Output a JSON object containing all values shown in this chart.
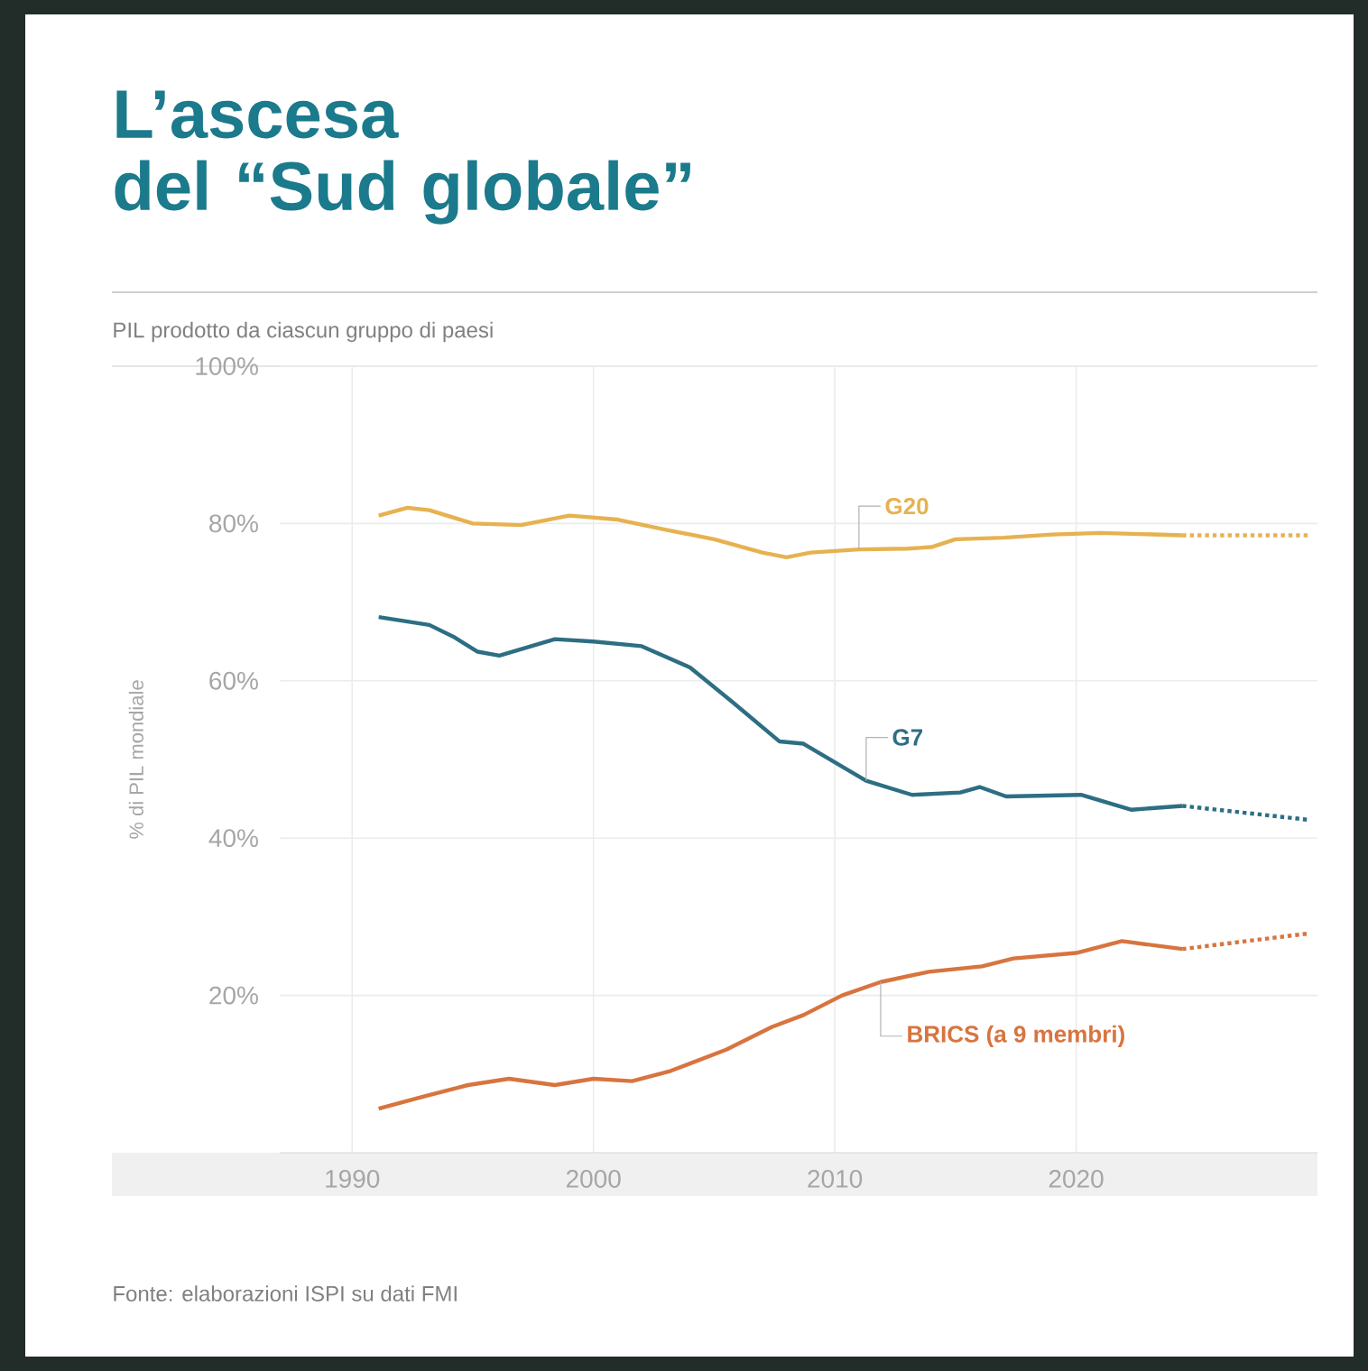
{
  "chart_data": {
    "type": "line",
    "title": "L’ascesa del “Sud globale”",
    "subtitle": "PIL prodotto da ciascun gruppo di paesi",
    "ylabel": "% di PIL mondiale",
    "annotations": [
      "Fonte: elaborazioni ISPI su dati FMI"
    ],
    "xlim": [
      1987,
      2030
    ],
    "xticks": [
      1990,
      2000,
      2010,
      2020
    ],
    "ylim": [
      0,
      100
    ],
    "yticks": [
      {
        "value": 20,
        "label": "20%"
      },
      {
        "value": 40,
        "label": "40%"
      },
      {
        "value": 60,
        "label": "60%"
      },
      {
        "value": 80,
        "label": "80%"
      },
      {
        "value": 100,
        "label": "100%"
      }
    ],
    "grid": true,
    "legend": false,
    "marker": "none",
    "series": [
      {
        "name": "G20",
        "color": "#e6b250",
        "line_style": "solid",
        "x": [
          1991.1,
          1992.3,
          1993.2,
          1995,
          1997,
          1999,
          2001,
          2003,
          2005,
          2007,
          2008,
          2009,
          2011,
          2013,
          2014,
          2015,
          2017,
          2019,
          2021,
          2024.4
        ],
        "values": [
          81.0,
          82.0,
          81.7,
          80.0,
          79.8,
          81.0,
          80.5,
          79.2,
          78.0,
          76.3,
          75.7,
          76.3,
          76.7,
          76.8,
          77.0,
          78.0,
          78.2,
          78.6,
          78.8,
          78.5
        ]
      },
      {
        "color": "#e6b250",
        "line_style": "dotted",
        "x": [
          2024.4,
          2029.7
        ],
        "values": [
          78.5,
          78.5
        ]
      },
      {
        "name": "G7",
        "color": "#2d6e83",
        "line_style": "solid",
        "x": [
          1991.1,
          1993.2,
          1994.2,
          1995.2,
          1996.1,
          1998.4,
          2000,
          2002,
          2004,
          2005.8,
          2007.7,
          2008.7,
          2011.3,
          2013.2,
          2015.2,
          2016,
          2017.1,
          2020.2,
          2022.3,
          2024.4
        ],
        "values": [
          68.1,
          67.1,
          65.6,
          63.7,
          63.2,
          65.3,
          65.0,
          64.4,
          61.7,
          57.2,
          52.3,
          52.0,
          47.3,
          45.5,
          45.8,
          46.5,
          45.3,
          45.5,
          43.6,
          44.1
        ]
      },
      {
        "color": "#2d6e83",
        "line_style": "dotted",
        "x": [
          2024.4,
          2029.7
        ],
        "values": [
          44.1,
          42.3
        ]
      },
      {
        "name": "BRICS (a 9 membri)",
        "color": "#d8743f",
        "line_style": "solid",
        "x": [
          1991.1,
          1992.9,
          1994.8,
          1996.5,
          1998.4,
          2000,
          2001.6,
          2003.2,
          2005.5,
          2007.4,
          2008.7,
          2010.3,
          2011.9,
          2013.9,
          2016.1,
          2017.4,
          2020,
          2021.9,
          2024.4
        ],
        "values": [
          5.6,
          7.1,
          8.6,
          9.4,
          8.6,
          9.4,
          9.1,
          10.4,
          13.1,
          16.0,
          17.5,
          20.0,
          21.7,
          23.0,
          23.7,
          24.7,
          25.4,
          26.9,
          25.9
        ]
      },
      {
        "color": "#d8743f",
        "line_style": "dotted",
        "x": [
          2024.4,
          2029.7
        ],
        "values": [
          25.9,
          27.9
        ]
      }
    ]
  }
}
